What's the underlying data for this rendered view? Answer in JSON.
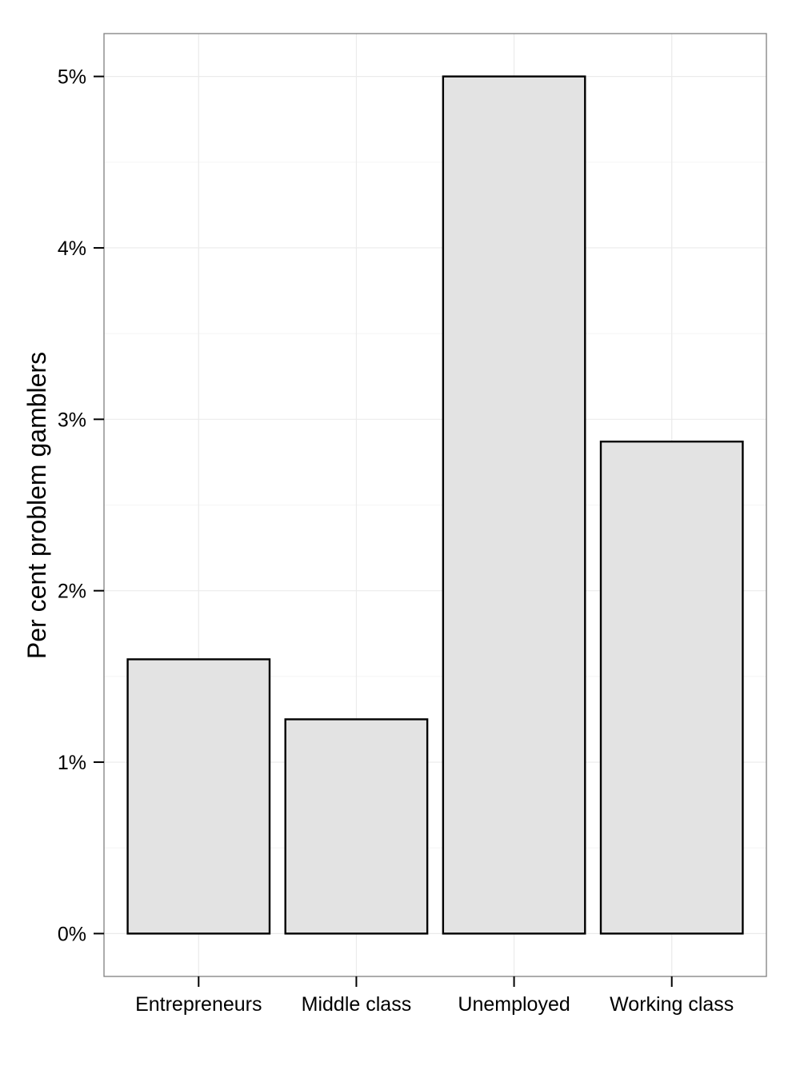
{
  "chart_data": {
    "type": "bar",
    "title": "",
    "xlabel": "",
    "ylabel": "Per cent problem gamblers",
    "categories": [
      "Entrepreneurs",
      "Middle class",
      "Unemployed",
      "Working class"
    ],
    "values": [
      1.6,
      1.25,
      5.0,
      2.87
    ],
    "ylim": [
      -0.25,
      5.25
    ],
    "y_ticks": [
      0,
      1,
      2,
      3,
      4,
      5
    ],
    "y_tick_labels": [
      "0%",
      "1%",
      "2%",
      "3%",
      "4%",
      "5%"
    ],
    "grid": true,
    "legend": "none",
    "colors": {
      "bar_fill": "#e3e3e3",
      "bar_stroke": "#000000",
      "panel_border": "#7f7f7f",
      "grid_major": "#ebebeb",
      "grid_minor": "#f5f5f5"
    }
  }
}
